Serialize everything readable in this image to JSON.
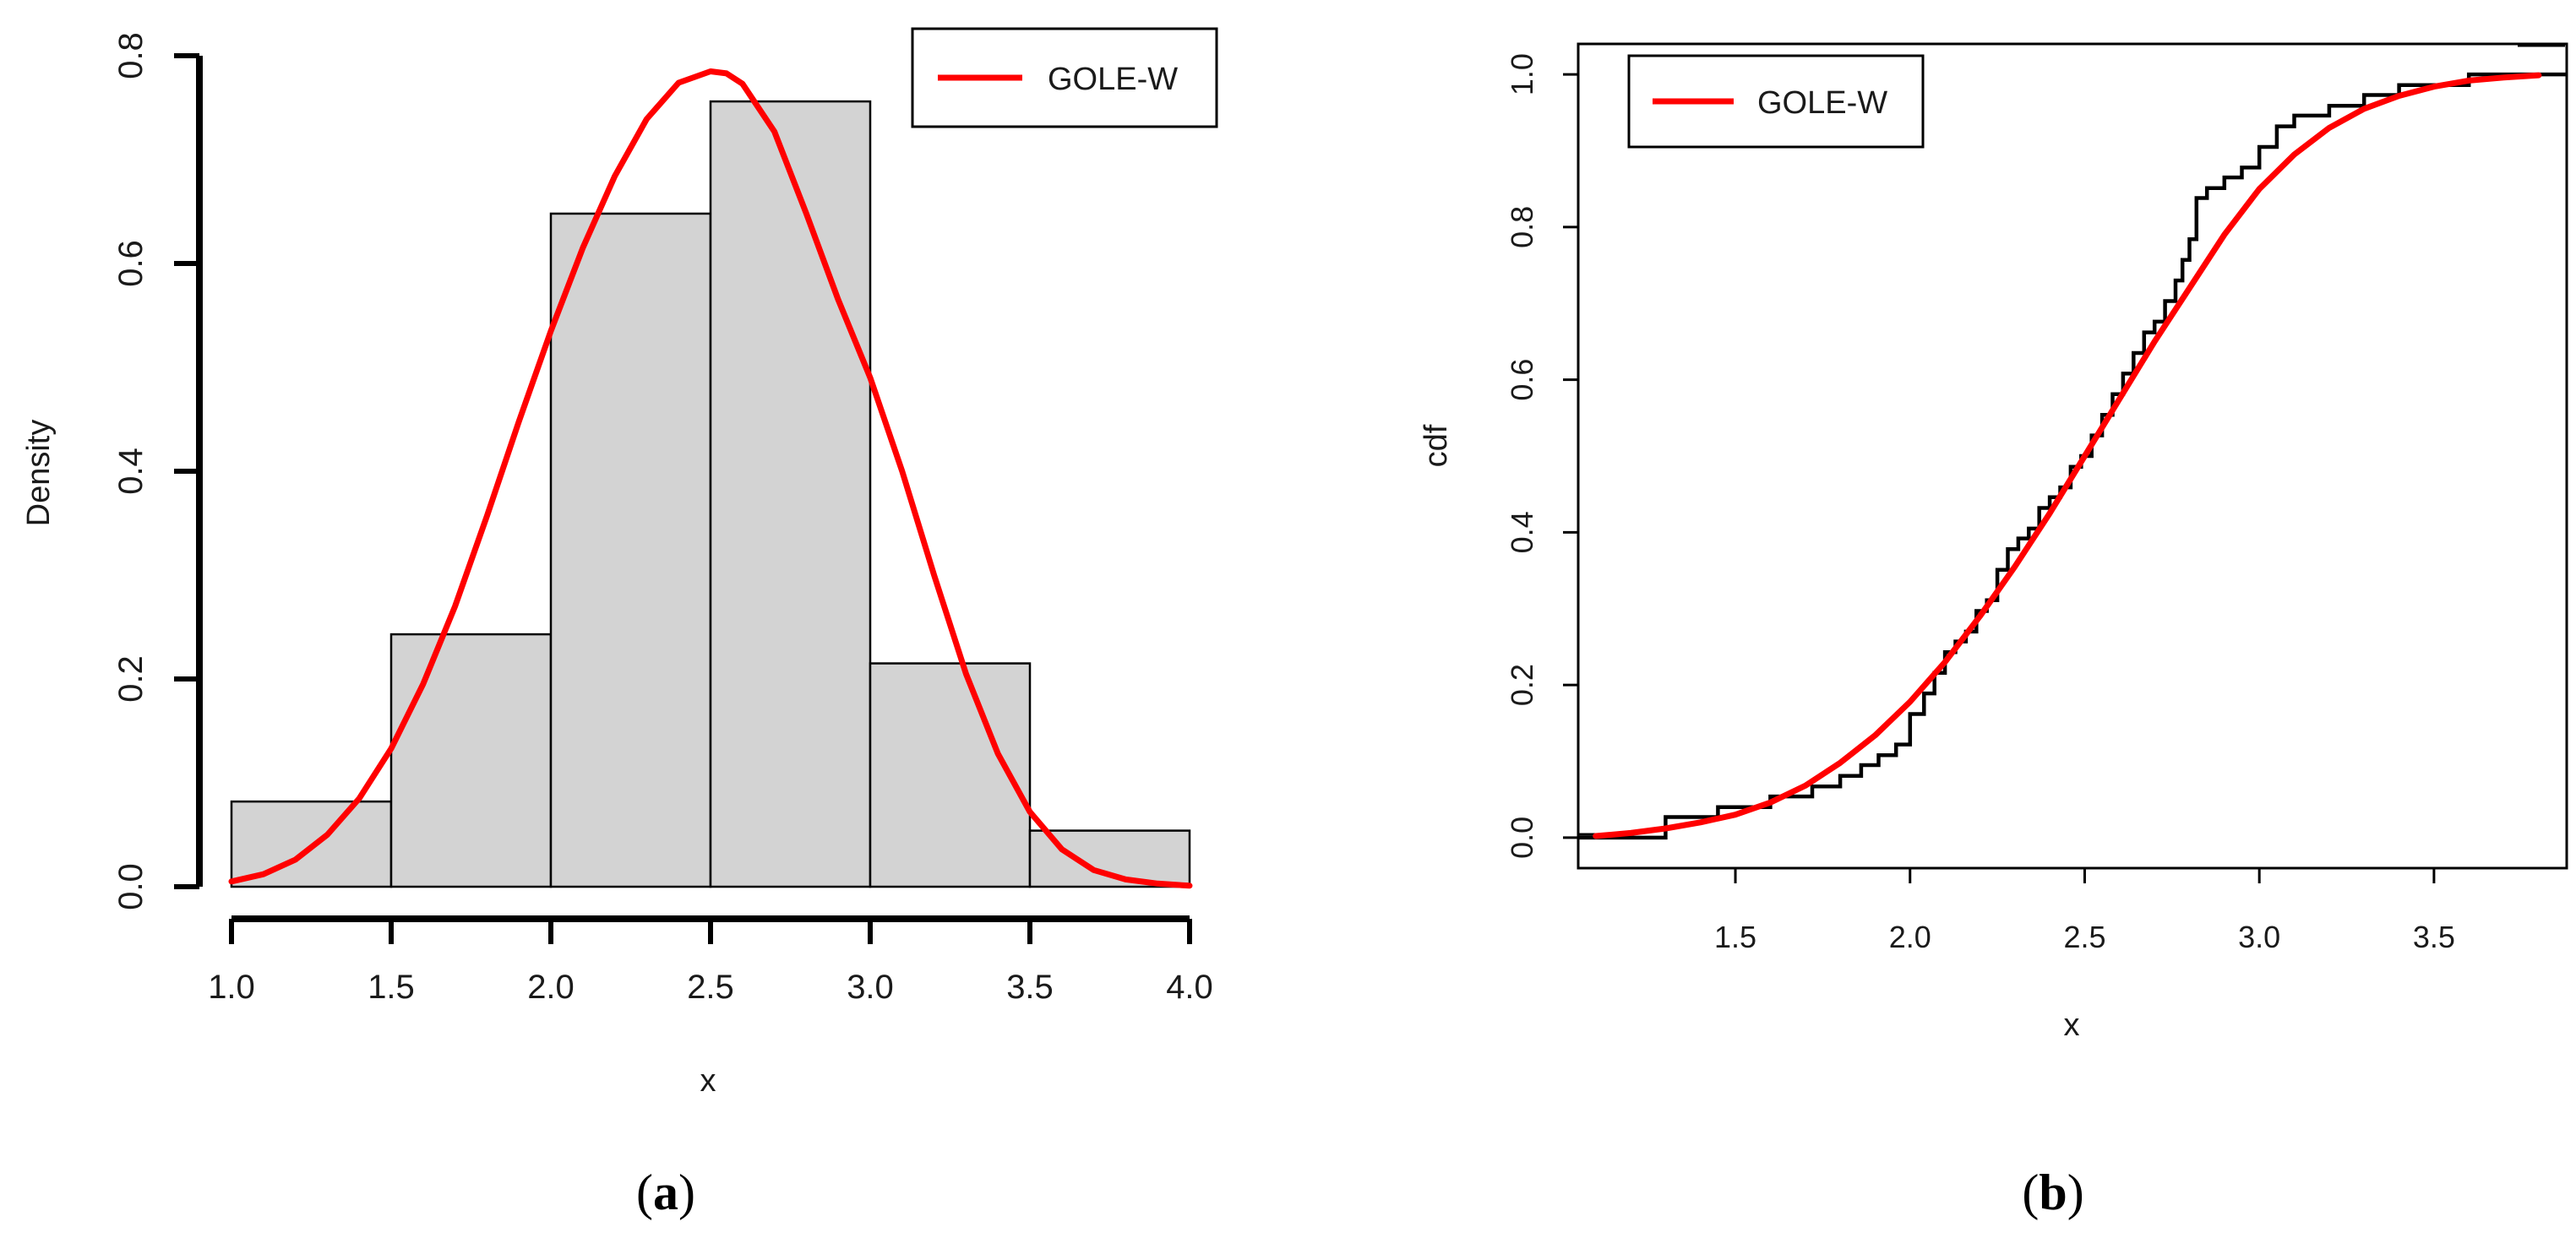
{
  "chart_data": [
    {
      "type": "histogram",
      "panel_label": {
        "open": "(",
        "letter": "a",
        "close": ")"
      },
      "xlabel": "x",
      "ylabel": "Density",
      "xlim": [
        1.0,
        4.0
      ],
      "ylim": [
        0.0,
        0.8
      ],
      "xticks": [
        "1.0",
        "1.5",
        "2.0",
        "2.5",
        "3.0",
        "3.5",
        "4.0"
      ],
      "yticks": [
        "0.0",
        "0.2",
        "0.4",
        "0.6",
        "0.8"
      ],
      "bins": [
        {
          "x0": 1.0,
          "x1": 1.5,
          "density": 0.082
        },
        {
          "x0": 1.5,
          "x1": 2.0,
          "density": 0.243
        },
        {
          "x0": 2.0,
          "x1": 2.5,
          "density": 0.648
        },
        {
          "x0": 2.5,
          "x1": 3.0,
          "density": 0.756
        },
        {
          "x0": 3.0,
          "x1": 3.5,
          "density": 0.215
        },
        {
          "x0": 3.5,
          "x1": 4.0,
          "density": 0.054
        }
      ],
      "fitted_pdf": {
        "name": "GOLE-W",
        "color": "#ff0000",
        "x": [
          1.0,
          1.1,
          1.2,
          1.3,
          1.4,
          1.5,
          1.6,
          1.7,
          1.8,
          1.9,
          2.0,
          2.1,
          2.2,
          2.3,
          2.4,
          2.5,
          2.55,
          2.6,
          2.7,
          2.8,
          2.9,
          3.0,
          3.1,
          3.2,
          3.3,
          3.4,
          3.5,
          3.6,
          3.7,
          3.8,
          3.9,
          4.0
        ],
        "y": [
          0.005,
          0.012,
          0.026,
          0.05,
          0.085,
          0.133,
          0.195,
          0.27,
          0.357,
          0.448,
          0.535,
          0.615,
          0.684,
          0.739,
          0.774,
          0.785,
          0.783,
          0.773,
          0.727,
          0.648,
          0.565,
          0.49,
          0.4,
          0.3,
          0.205,
          0.128,
          0.072,
          0.036,
          0.016,
          0.007,
          0.003,
          0.001
        ]
      },
      "legend": {
        "label": "GOLE-W",
        "position": "top-right"
      }
    },
    {
      "type": "line",
      "panel_label": {
        "open": "(",
        "letter": "b",
        "close": ")"
      },
      "xlabel": "x",
      "ylabel": "cdf",
      "xlim": [
        1.05,
        3.88
      ],
      "ylim": [
        -0.04,
        1.04
      ],
      "xticks": [
        "1.5",
        "2.0",
        "2.5",
        "3.0",
        "3.5"
      ],
      "yticks": [
        "0.0",
        "0.2",
        "0.4",
        "0.6",
        "0.8",
        "1.0"
      ],
      "empirical_cdf": {
        "color": "#000000",
        "x": [
          1.3,
          1.45,
          1.6,
          1.72,
          1.8,
          1.86,
          1.91,
          1.96,
          2.0,
          2.04,
          2.07,
          2.1,
          2.13,
          2.16,
          2.19,
          2.22,
          2.25,
          2.28,
          2.31,
          2.34,
          2.37,
          2.4,
          2.43,
          2.46,
          2.49,
          2.52,
          2.55,
          2.58,
          2.61,
          2.64,
          2.67,
          2.7,
          2.73,
          2.76,
          2.78,
          2.8,
          2.82,
          2.85,
          2.9,
          2.95,
          3.0,
          3.05,
          3.1,
          3.2,
          3.3,
          3.4,
          3.5,
          3.6,
          3.88
        ],
        "y": [
          0.027,
          0.04,
          0.054,
          0.067,
          0.081,
          0.095,
          0.108,
          0.122,
          0.162,
          0.189,
          0.216,
          0.243,
          0.257,
          0.27,
          0.297,
          0.311,
          0.351,
          0.378,
          0.392,
          0.405,
          0.432,
          0.446,
          0.459,
          0.486,
          0.5,
          0.527,
          0.554,
          0.581,
          0.608,
          0.635,
          0.662,
          0.676,
          0.703,
          0.73,
          0.757,
          0.784,
          0.838,
          0.851,
          0.865,
          0.878,
          0.905,
          0.932,
          0.946,
          0.959,
          0.973,
          0.986,
          0.986,
          1.0,
          1.0
        ]
      },
      "fitted_cdf": {
        "name": "GOLE-W",
        "color": "#ff0000",
        "x": [
          1.1,
          1.2,
          1.3,
          1.4,
          1.5,
          1.6,
          1.7,
          1.8,
          1.9,
          2.0,
          2.1,
          2.2,
          2.3,
          2.4,
          2.5,
          2.6,
          2.7,
          2.8,
          2.9,
          3.0,
          3.1,
          3.2,
          3.3,
          3.4,
          3.5,
          3.6,
          3.7,
          3.8
        ],
        "y": [
          0.002,
          0.006,
          0.012,
          0.02,
          0.03,
          0.046,
          0.068,
          0.098,
          0.134,
          0.178,
          0.23,
          0.29,
          0.355,
          0.425,
          0.5,
          0.575,
          0.65,
          0.72,
          0.79,
          0.85,
          0.895,
          0.93,
          0.955,
          0.972,
          0.984,
          0.992,
          0.996,
          0.999
        ]
      },
      "legend": {
        "label": "GOLE-W",
        "position": "top-left"
      }
    }
  ]
}
